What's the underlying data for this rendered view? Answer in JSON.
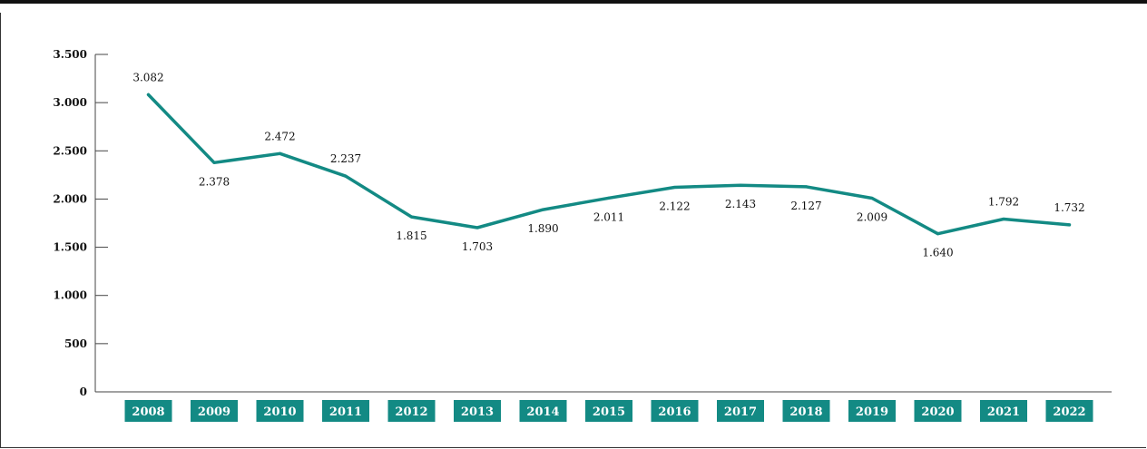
{
  "chart_data": {
    "type": "line",
    "categories": [
      "2008",
      "2009",
      "2010",
      "2011",
      "2012",
      "2013",
      "2014",
      "2015",
      "2016",
      "2017",
      "2018",
      "2019",
      "2020",
      "2021",
      "2022"
    ],
    "values": [
      3082,
      2378,
      2472,
      2237,
      1815,
      1703,
      1890,
      2011,
      2122,
      2143,
      2127,
      2009,
      1640,
      1792,
      1732
    ],
    "data_labels": [
      "3.082",
      "2.378",
      "2.472",
      "2.237",
      "1.815",
      "1.703",
      "1.890",
      "2.011",
      "2.122",
      "2.143",
      "2.127",
      "2.009",
      "1.640",
      "1.792",
      "1.732"
    ],
    "label_position": [
      "above",
      "below",
      "above",
      "above",
      "below",
      "below",
      "below",
      "below",
      "below",
      "below",
      "below",
      "below",
      "below",
      "above",
      "above"
    ],
    "yticks": [
      0,
      500,
      1000,
      1500,
      2000,
      2500,
      3000,
      3500
    ],
    "ytick_labels": [
      "0",
      "500",
      "1.000",
      "1.500",
      "2.000",
      "2.500",
      "3.000",
      "3.500"
    ],
    "ylim": [
      0,
      3500
    ],
    "title": "",
    "xlabel": "",
    "ylabel": "",
    "grid": false,
    "legend": "none",
    "colors": {
      "line": "#138a84",
      "category_box": "#138a84"
    }
  }
}
